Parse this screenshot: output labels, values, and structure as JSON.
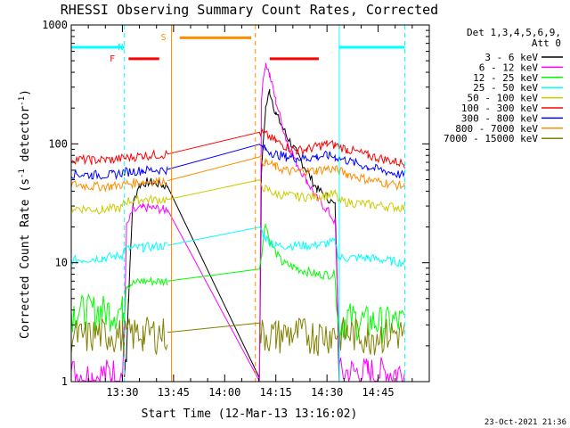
{
  "chart_data": {
    "type": "line",
    "title": "RHESSI Observing Summary Count Rates, Corrected",
    "xlabel": "Start Time (12-Mar-13 13:16:02)",
    "ylabel_main": "Corrected Count Rate (s",
    "ylabel_sup1": "-1",
    "ylabel_mid": " detector",
    "ylabel_sup2": "-1",
    "ylabel_end": ")",
    "yscale": "log",
    "xlim": [
      13.25,
      15.0
    ],
    "ylim": [
      1,
      1000
    ],
    "x_ticks": [
      {
        "t": 13.5,
        "label": "13:30"
      },
      {
        "t": 13.75,
        "label": "13:45"
      },
      {
        "t": 14.0,
        "label": "14:00"
      },
      {
        "t": 14.25,
        "label": "14:15"
      },
      {
        "t": 14.5,
        "label": "14:30"
      },
      {
        "t": 14.75,
        "label": "14:45"
      }
    ],
    "y_ticks": [
      {
        "v": 1,
        "label": "1"
      },
      {
        "v": 10,
        "label": "10"
      },
      {
        "v": 100,
        "label": "100"
      },
      {
        "v": 1000,
        "label": "1000"
      }
    ],
    "legend_header": [
      "Det 1,3,4,5,6,9,",
      "Att 0"
    ],
    "legend_position": "right",
    "timestamp": "23-Oct-2021 21:36",
    "data_gaps": [
      [
        13.72,
        14.17
      ],
      [
        14.56,
        14.58
      ]
    ],
    "flags": [
      {
        "label": "N",
        "color": "#00ffff",
        "segments": [
          [
            13.25,
            13.51
          ],
          [
            14.56,
            14.88
          ]
        ],
        "level": 650
      },
      {
        "label": "F",
        "color": "#ff0000",
        "segments": [
          [
            13.53,
            13.68
          ],
          [
            14.22,
            14.46
          ]
        ],
        "level": 520
      },
      {
        "label": "S",
        "color": "#ff8c00",
        "segments": [
          [
            13.78,
            14.13
          ]
        ],
        "level": 780
      }
    ],
    "flag_letters": [
      {
        "text": "S",
        "t": 13.74,
        "v": 800,
        "color": "#ff8c00"
      },
      {
        "text": "N",
        "t": 13.53,
        "v": 660,
        "color": "#00ffff"
      },
      {
        "text": "F",
        "t": 13.49,
        "v": 530,
        "color": "#ff0000"
      }
    ],
    "boundaries": [
      {
        "t": 13.51,
        "color": "#00ffff",
        "dashed": true
      },
      {
        "t": 13.74,
        "color": "#ff8c00",
        "dashed": false
      },
      {
        "t": 14.15,
        "color": "#ff8c00",
        "dashed": true
      },
      {
        "t": 14.56,
        "color": "#00ffff",
        "dashed": false
      },
      {
        "t": 14.88,
        "color": "#00ffff",
        "dashed": true
      }
    ],
    "series": [
      {
        "name": "3 - 6 keV",
        "color": "#000000",
        "points": [
          [
            13.51,
            1.1
          ],
          [
            13.52,
            2
          ],
          [
            13.53,
            5
          ],
          [
            13.55,
            30
          ],
          [
            13.58,
            45
          ],
          [
            13.62,
            48
          ],
          [
            13.66,
            47
          ],
          [
            13.7,
            45
          ],
          [
            13.72,
            44
          ],
          [
            14.17,
            1.2
          ],
          [
            14.18,
            60
          ],
          [
            14.2,
            200
          ],
          [
            14.22,
            280
          ],
          [
            14.25,
            180
          ],
          [
            14.3,
            120
          ],
          [
            14.35,
            85
          ],
          [
            14.4,
            60
          ],
          [
            14.45,
            42
          ],
          [
            14.5,
            36
          ],
          [
            14.54,
            30
          ],
          [
            14.555,
            3
          ],
          [
            14.56,
            1.1
          ]
        ]
      },
      {
        "name": "6 - 12 keV",
        "color": "#ff00ff",
        "points": [
          [
            13.25,
            1.2
          ],
          [
            13.35,
            1.1
          ],
          [
            13.45,
            1.2
          ],
          [
            13.5,
            1.1
          ],
          [
            13.51,
            3
          ],
          [
            13.52,
            20
          ],
          [
            13.55,
            27
          ],
          [
            13.6,
            29
          ],
          [
            13.65,
            29
          ],
          [
            13.7,
            28
          ],
          [
            13.72,
            28
          ],
          [
            14.17,
            1.2
          ],
          [
            14.18,
            250
          ],
          [
            14.2,
            490
          ],
          [
            14.22,
            380
          ],
          [
            14.25,
            230
          ],
          [
            14.3,
            110
          ],
          [
            14.35,
            70
          ],
          [
            14.4,
            50
          ],
          [
            14.45,
            35
          ],
          [
            14.5,
            28
          ],
          [
            14.54,
            22
          ],
          [
            14.555,
            3
          ],
          [
            14.56,
            1.2
          ],
          [
            14.7,
            1.2
          ],
          [
            14.88,
            1.2
          ]
        ]
      },
      {
        "name": "12 - 25 keV",
        "color": "#00ff00",
        "points": [
          [
            13.25,
            4
          ],
          [
            13.4,
            4
          ],
          [
            13.5,
            4
          ],
          [
            13.51,
            4.5
          ],
          [
            13.52,
            6.5
          ],
          [
            13.6,
            7
          ],
          [
            13.72,
            7
          ],
          [
            14.17,
            9
          ],
          [
            14.2,
            22
          ],
          [
            14.22,
            15
          ],
          [
            14.28,
            10
          ],
          [
            14.35,
            9
          ],
          [
            14.45,
            8
          ],
          [
            14.54,
            8
          ],
          [
            14.555,
            3
          ],
          [
            14.6,
            3.5
          ],
          [
            14.7,
            3.2
          ],
          [
            14.88,
            3.2
          ]
        ]
      },
      {
        "name": "25 - 50 keV",
        "color": "#00ffff",
        "points": [
          [
            13.25,
            10.5
          ],
          [
            13.4,
            11
          ],
          [
            13.5,
            11.5
          ],
          [
            13.51,
            13
          ],
          [
            13.6,
            13.5
          ],
          [
            13.72,
            14
          ],
          [
            14.17,
            20
          ],
          [
            14.2,
            16
          ],
          [
            14.25,
            14
          ],
          [
            14.35,
            14
          ],
          [
            14.45,
            14
          ],
          [
            14.54,
            15
          ],
          [
            14.56,
            11
          ],
          [
            14.7,
            11
          ],
          [
            14.88,
            10
          ]
        ]
      },
      {
        "name": "50 - 100 keV",
        "color": "#cccc00",
        "points": [
          [
            13.25,
            29
          ],
          [
            13.4,
            28
          ],
          [
            13.5,
            29
          ],
          [
            13.51,
            33
          ],
          [
            13.6,
            34
          ],
          [
            13.72,
            34
          ],
          [
            14.17,
            46
          ],
          [
            14.2,
            42
          ],
          [
            14.25,
            38
          ],
          [
            14.35,
            36
          ],
          [
            14.45,
            36
          ],
          [
            14.54,
            38
          ],
          [
            14.56,
            33
          ],
          [
            14.7,
            31
          ],
          [
            14.88,
            29
          ]
        ]
      },
      {
        "name": "100 - 300 keV",
        "color": "#ff0000",
        "points": [
          [
            13.25,
            75
          ],
          [
            13.35,
            73
          ],
          [
            13.45,
            74
          ],
          [
            13.51,
            76
          ],
          [
            13.6,
            80
          ],
          [
            13.72,
            82
          ],
          [
            14.17,
            125
          ],
          [
            14.2,
            120
          ],
          [
            14.25,
            105
          ],
          [
            14.3,
            95
          ],
          [
            14.35,
            88
          ],
          [
            14.4,
            90
          ],
          [
            14.45,
            95
          ],
          [
            14.5,
            100
          ],
          [
            14.54,
            98
          ],
          [
            14.6,
            90
          ],
          [
            14.7,
            80
          ],
          [
            14.88,
            68
          ]
        ]
      },
      {
        "name": "300 - 800 keV",
        "color": "#0000ff",
        "points": [
          [
            13.25,
            56
          ],
          [
            13.35,
            55
          ],
          [
            13.45,
            55
          ],
          [
            13.51,
            58
          ],
          [
            13.6,
            60
          ],
          [
            13.72,
            61
          ],
          [
            14.17,
            96
          ],
          [
            14.2,
            90
          ],
          [
            14.25,
            82
          ],
          [
            14.3,
            78
          ],
          [
            14.35,
            76
          ],
          [
            14.4,
            76
          ],
          [
            14.45,
            78
          ],
          [
            14.5,
            80
          ],
          [
            14.54,
            78
          ],
          [
            14.6,
            72
          ],
          [
            14.7,
            64
          ],
          [
            14.88,
            54
          ]
        ]
      },
      {
        "name": "800 - 7000 keV",
        "color": "#ff8c00",
        "points": [
          [
            13.25,
            46
          ],
          [
            13.35,
            44
          ],
          [
            13.45,
            44
          ],
          [
            13.51,
            46
          ],
          [
            13.6,
            48
          ],
          [
            13.72,
            49
          ],
          [
            14.17,
            74
          ],
          [
            14.2,
            70
          ],
          [
            14.25,
            64
          ],
          [
            14.3,
            60
          ],
          [
            14.35,
            58
          ],
          [
            14.4,
            59
          ],
          [
            14.45,
            60
          ],
          [
            14.5,
            62
          ],
          [
            14.54,
            61
          ],
          [
            14.6,
            56
          ],
          [
            14.7,
            50
          ],
          [
            14.88,
            44
          ]
        ]
      },
      {
        "name": "7000 - 15000 keV",
        "color": "#808000",
        "points": [
          [
            13.25,
            2.6
          ],
          [
            13.3,
            2.4
          ],
          [
            13.4,
            2.6
          ],
          [
            13.5,
            2.5
          ],
          [
            13.6,
            2.6
          ],
          [
            13.72,
            2.6
          ],
          [
            14.17,
            2.6
          ],
          [
            14.25,
            2.5
          ],
          [
            14.35,
            2.6
          ],
          [
            14.45,
            2.5
          ],
          [
            14.54,
            2.6
          ],
          [
            14.6,
            2.6
          ],
          [
            14.7,
            2.5
          ],
          [
            14.88,
            2.6
          ]
        ]
      }
    ]
  }
}
